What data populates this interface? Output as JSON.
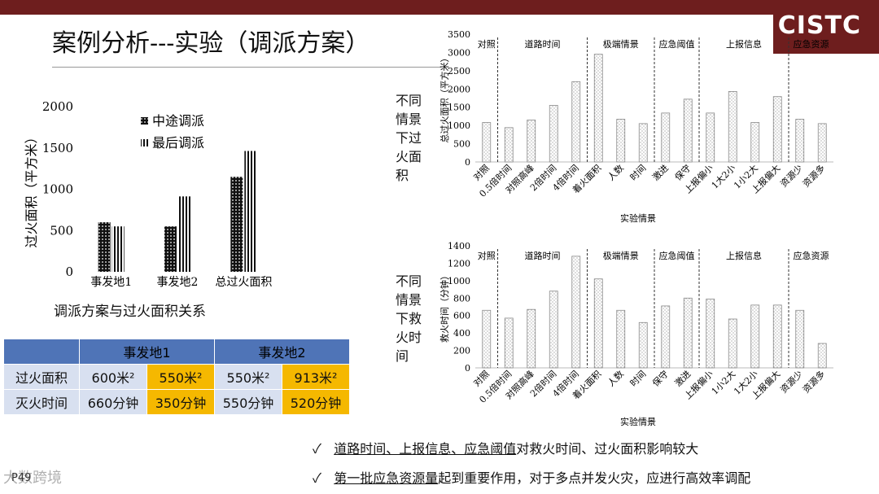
{
  "slide": {
    "title": "案例分析---实验（调派方案）",
    "logo": "CISTC",
    "page": "P49",
    "watermark": "大数跨境"
  },
  "chart_left": {
    "ylabel": "过火面积（平方米）",
    "caption": "调派方案与过火面积关系",
    "ticks": [
      "0",
      "500",
      "1000",
      "1500",
      "2000"
    ],
    "categories": [
      "事发地1",
      "事发地2",
      "总过火面积"
    ],
    "legend": [
      "中途调派",
      "最后调派"
    ]
  },
  "chart_top": {
    "side_label": "不同情景下过火面积",
    "ylabel": "总过火面积（平方米）",
    "xlabel": "实验情景",
    "ticks": [
      "0",
      "500",
      "1000",
      "1500",
      "2000",
      "2500",
      "3000",
      "3500"
    ],
    "groups": [
      "对照",
      "道路时间",
      "极端情景",
      "应急阈值",
      "上报信息",
      "应急资源"
    ],
    "categories": [
      "对照",
      "0.5倍时间",
      "对照高峰",
      "2倍时间",
      "4倍时间",
      "着火面积",
      "人数",
      "时间",
      "激进",
      "保守",
      "上报偏小",
      "1大2小",
      "1小2大",
      "上报偏大",
      "资源少",
      "资源多"
    ]
  },
  "chart_bottom": {
    "side_label": "不同情景下救火时间",
    "ylabel": "救火时间（分钟）",
    "xlabel": "实验情景",
    "ticks": [
      "0",
      "200",
      "400",
      "600",
      "800",
      "1000",
      "1200",
      "1400"
    ],
    "groups": [
      "对照",
      "道路时间",
      "极端情景",
      "应急阈值",
      "上报信息",
      "应急资源"
    ],
    "categories": [
      "对照",
      "0.5倍时间",
      "对照高峰",
      "2倍时间",
      "4倍时间",
      "着火面积",
      "人数",
      "时间",
      "保守",
      "激进",
      "上报偏小",
      "1小2大",
      "1大2小",
      "上报偏大",
      "资源少",
      "资源多"
    ]
  },
  "chart_data": [
    {
      "type": "bar",
      "title": "",
      "ylabel": "过火面积（平方米）",
      "xlabel": "",
      "ylim": [
        0,
        2000
      ],
      "categories": [
        "事发地1",
        "事发地2",
        "总过火面积"
      ],
      "series": [
        {
          "name": "中途调派",
          "values": [
            600,
            550,
            1150
          ]
        },
        {
          "name": "最后调派",
          "values": [
            550,
            913,
            1463
          ]
        }
      ],
      "legend": "top-right"
    },
    {
      "type": "bar",
      "title": "",
      "ylabel": "总过火面积（平方米）",
      "xlabel": "实验情景",
      "ylim": [
        0,
        3500
      ],
      "categories": [
        "对照",
        "0.5倍时间",
        "对照高峰",
        "2倍时间",
        "4倍时间",
        "着火面积",
        "人数",
        "时间",
        "激进",
        "保守",
        "上报偏小",
        "1大2小",
        "1小2大",
        "上报偏大",
        "资源少",
        "资源多"
      ],
      "values": [
        1080,
        940,
        1150,
        1550,
        2200,
        2950,
        1170,
        1050,
        1340,
        1720,
        1340,
        1930,
        1080,
        1790,
        1170,
        1050
      ]
    },
    {
      "type": "bar",
      "title": "",
      "ylabel": "救火时间（分钟）",
      "xlabel": "实验情景",
      "ylim": [
        0,
        1400
      ],
      "categories": [
        "对照",
        "0.5倍时间",
        "对照高峰",
        "2倍时间",
        "4倍时间",
        "着火面积",
        "人数",
        "时间",
        "保守",
        "激进",
        "上报偏小",
        "1小2大",
        "1大2小",
        "上报偏大",
        "资源少",
        "资源多"
      ],
      "values": [
        660,
        570,
        670,
        880,
        1280,
        1020,
        660,
        520,
        710,
        800,
        790,
        560,
        720,
        720,
        660,
        280
      ]
    }
  ],
  "table": {
    "head": [
      "",
      "事发地1",
      "事发地2"
    ],
    "rows": [
      {
        "label": "过火面积",
        "cells": [
          "600米²",
          "550米²",
          "550米²",
          "913米²"
        ]
      },
      {
        "label": "灭火时间",
        "cells": [
          "660分钟",
          "350分钟",
          "550分钟",
          "520分钟"
        ]
      }
    ]
  },
  "conclusions": [
    {
      "check": "✓",
      "underlined": "道路时间、上报信息、应急阈值",
      "rest": "对救火时间、过火面积影响较大"
    },
    {
      "check": "✓",
      "underlined": "第一批应急资源量",
      "rest": "起到重要作用，对于多点并发火灾，应进行高效率调配"
    }
  ],
  "colors": {
    "brand": "#6e1e1e",
    "table_header": "#4f74b7",
    "table_cell": "#d8e0f0",
    "highlight": "#f5b800"
  }
}
